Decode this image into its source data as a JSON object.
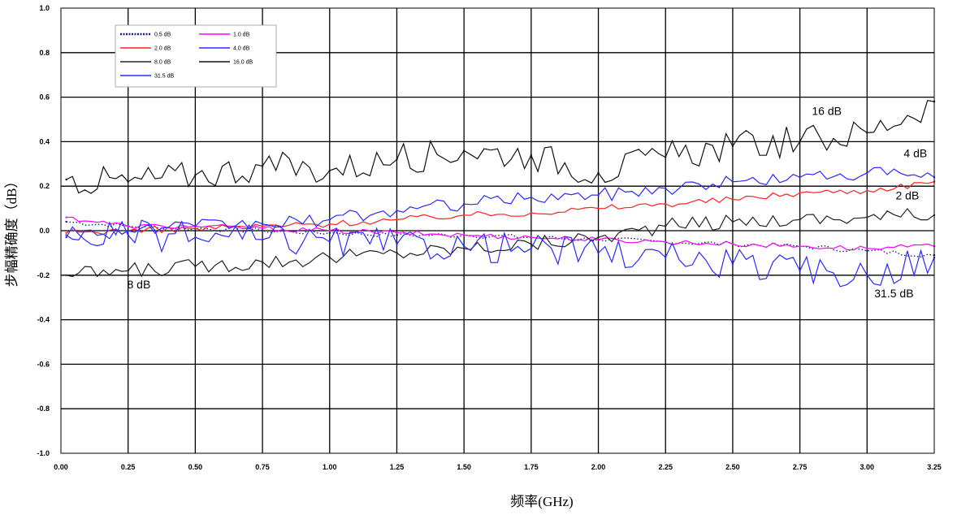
{
  "chart_data": {
    "type": "line",
    "xlabel": "频率(GHz)",
    "ylabel": "步幅精确度（dB）",
    "xlim": [
      0,
      3.25
    ],
    "ylim": [
      -1.0,
      1.0
    ],
    "x_ticks": [
      "0.00",
      "0.25",
      "0.50",
      "0.75",
      "1.00",
      "1.25",
      "1.50",
      "1.75",
      "2.00",
      "2.25",
      "2.50",
      "2.75",
      "3.00",
      "3.25"
    ],
    "y_ticks": [
      "1.0",
      "0.8",
      "0.6",
      "0.4",
      "0.2",
      "0.0",
      "-0.2",
      "-0.4",
      "-0.6",
      "-0.8",
      "-1.0"
    ],
    "grid": true,
    "legend_position": "top-left",
    "series": [
      {
        "name": "0.5 dB",
        "color": "#1a237e",
        "style": "dotted",
        "x": [
          0.02,
          0.25,
          0.5,
          0.75,
          1.0,
          1.25,
          1.5,
          1.75,
          2.0,
          2.25,
          2.5,
          2.75,
          3.0,
          3.25
        ],
        "y": [
          0.04,
          0.02,
          0.01,
          0.0,
          -0.01,
          -0.02,
          -0.02,
          -0.03,
          -0.04,
          -0.05,
          -0.06,
          -0.07,
          -0.09,
          -0.11
        ]
      },
      {
        "name": "1.0 dB",
        "color": "#ff00ff",
        "style": "solid",
        "x": [
          0.02,
          0.25,
          0.5,
          0.75,
          1.0,
          1.25,
          1.5,
          1.75,
          2.0,
          2.25,
          2.5,
          2.75,
          3.0,
          3.25
        ],
        "y": [
          0.06,
          0.02,
          0.02,
          0.01,
          0.0,
          -0.01,
          -0.02,
          -0.03,
          -0.04,
          -0.05,
          -0.06,
          -0.07,
          -0.08,
          -0.07
        ]
      },
      {
        "name": "2.0 dB",
        "color": "#ff2020",
        "style": "solid",
        "x": [
          0.02,
          0.25,
          0.5,
          0.75,
          1.0,
          1.25,
          1.5,
          1.75,
          2.0,
          2.25,
          2.5,
          2.75,
          3.0,
          3.25
        ],
        "y": [
          -0.01,
          0.0,
          0.01,
          0.02,
          0.03,
          0.05,
          0.07,
          0.08,
          0.1,
          0.12,
          0.14,
          0.17,
          0.18,
          0.22
        ]
      },
      {
        "name": "4.0 dB",
        "color": "#2a2aff",
        "style": "solid",
        "x": [
          0.02,
          0.25,
          0.5,
          0.75,
          1.0,
          1.25,
          1.5,
          1.75,
          2.0,
          2.25,
          2.5,
          2.75,
          3.0,
          3.25
        ],
        "y": [
          -0.02,
          0.0,
          0.02,
          0.03,
          0.05,
          0.09,
          0.12,
          0.15,
          0.16,
          0.19,
          0.22,
          0.24,
          0.26,
          0.24
        ]
      },
      {
        "name": "8.0 dB",
        "color": "#222222",
        "style": "solid",
        "x": [
          0.02,
          0.25,
          0.5,
          0.75,
          1.0,
          1.25,
          1.5,
          1.75,
          2.0,
          2.25,
          2.5,
          2.75,
          3.0,
          3.25
        ],
        "y": [
          -0.2,
          -0.18,
          -0.16,
          -0.14,
          -0.12,
          -0.1,
          -0.08,
          -0.06,
          -0.03,
          0.02,
          0.04,
          0.05,
          0.06,
          0.07
        ]
      },
      {
        "name": "16.0 dB",
        "color": "#111111",
        "style": "solid",
        "x": [
          0.02,
          0.25,
          0.5,
          0.75,
          1.0,
          1.25,
          1.5,
          1.75,
          2.0,
          2.25,
          2.5,
          2.75,
          3.0,
          3.25
        ],
        "y": [
          0.23,
          0.22,
          0.25,
          0.29,
          0.27,
          0.32,
          0.36,
          0.34,
          0.26,
          0.33,
          0.38,
          0.4,
          0.44,
          0.58
        ]
      },
      {
        "name": "31.5 dB",
        "color": "#2a2aff",
        "style": "solid",
        "x": [
          0.02,
          0.25,
          0.5,
          0.75,
          1.0,
          1.25,
          1.5,
          1.75,
          2.0,
          2.25,
          2.5,
          2.75,
          3.0,
          3.25
        ],
        "y": [
          -0.03,
          -0.02,
          -0.03,
          -0.04,
          -0.05,
          -0.06,
          -0.07,
          -0.08,
          -0.1,
          -0.12,
          -0.15,
          -0.18,
          -0.2,
          -0.12
        ]
      }
    ],
    "annotations": [
      {
        "text": "16 dB",
        "x": 2.85,
        "y": 0.52
      },
      {
        "text": "4 dB",
        "x": 3.18,
        "y": 0.33
      },
      {
        "text": "2 dB",
        "x": 3.15,
        "y": 0.14
      },
      {
        "text": "8 dB",
        "x": 0.29,
        "y": -0.26
      },
      {
        "text": "31.5 dB",
        "x": 3.1,
        "y": -0.3
      }
    ]
  }
}
